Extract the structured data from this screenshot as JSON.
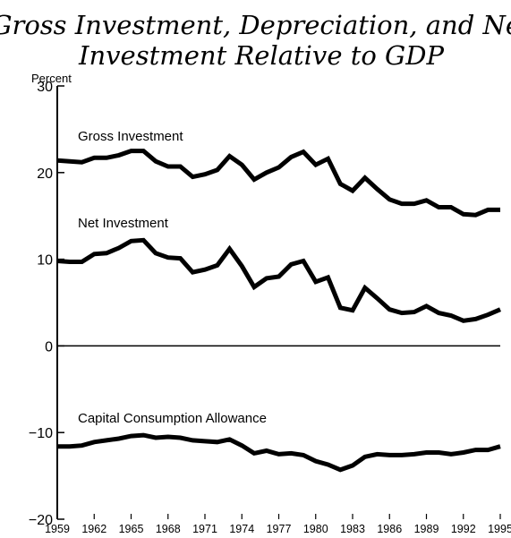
{
  "chart_data": {
    "type": "line",
    "title_lines": [
      "Gross Investment, Depreciation, and Net",
      "Investment Relative to GDP"
    ],
    "ylabel": "Percent",
    "ylim": [
      -20,
      30
    ],
    "yticks": [
      30,
      20,
      10,
      0,
      -10,
      -20
    ],
    "xlim": [
      1959,
      1995
    ],
    "xticks": [
      1959,
      1962,
      1965,
      1968,
      1971,
      1974,
      1977,
      1980,
      1983,
      1986,
      1989,
      1992,
      1995
    ],
    "grid": false,
    "series_labels_inline": true,
    "series": [
      {
        "name": "Gross Investment",
        "color": "#000000",
        "x": [
          1959,
          1960,
          1961,
          1962,
          1963,
          1964,
          1965,
          1966,
          1967,
          1968,
          1969,
          1970,
          1971,
          1972,
          1973,
          1974,
          1975,
          1976,
          1977,
          1978,
          1979,
          1980,
          1981,
          1982,
          1983,
          1984,
          1985,
          1986,
          1987,
          1988,
          1989,
          1990,
          1991,
          1992,
          1993,
          1994,
          1995
        ],
        "values": [
          21.4,
          21.3,
          21.2,
          21.7,
          21.7,
          22.0,
          22.5,
          22.5,
          21.3,
          20.7,
          20.7,
          19.5,
          19.8,
          20.3,
          21.9,
          20.9,
          19.2,
          20.0,
          20.6,
          21.8,
          22.4,
          20.9,
          21.6,
          18.7,
          17.9,
          19.4,
          18.1,
          16.9,
          16.4,
          16.4,
          16.8,
          16.0,
          16.0,
          15.2,
          15.1,
          15.7,
          15.7
        ]
      },
      {
        "name": "Net Investment",
        "color": "#000000",
        "x": [
          1959,
          1960,
          1961,
          1962,
          1963,
          1964,
          1965,
          1966,
          1967,
          1968,
          1969,
          1970,
          1971,
          1972,
          1973,
          1974,
          1975,
          1976,
          1977,
          1978,
          1979,
          1980,
          1981,
          1982,
          1983,
          1984,
          1985,
          1986,
          1987,
          1988,
          1989,
          1990,
          1991,
          1992,
          1993,
          1994,
          1995
        ],
        "values": [
          9.8,
          9.7,
          9.7,
          10.6,
          10.7,
          11.3,
          12.1,
          12.2,
          10.7,
          10.2,
          10.1,
          8.5,
          8.8,
          9.3,
          11.2,
          9.2,
          6.8,
          7.8,
          8.0,
          9.4,
          9.8,
          7.4,
          7.9,
          4.4,
          4.1,
          6.7,
          5.5,
          4.2,
          3.8,
          3.9,
          4.6,
          3.8,
          3.5,
          2.9,
          3.1,
          3.6,
          4.2
        ]
      },
      {
        "name": "Capital Consumption Allowance",
        "color": "#000000",
        "x": [
          1959,
          1960,
          1961,
          1962,
          1963,
          1964,
          1965,
          1966,
          1967,
          1968,
          1969,
          1970,
          1971,
          1972,
          1973,
          1974,
          1975,
          1976,
          1977,
          1978,
          1979,
          1980,
          1981,
          1982,
          1983,
          1984,
          1985,
          1986,
          1987,
          1988,
          1989,
          1990,
          1991,
          1992,
          1993,
          1994,
          1995
        ],
        "values": [
          -11.6,
          -11.6,
          -11.5,
          -11.1,
          -10.9,
          -10.7,
          -10.4,
          -10.3,
          -10.6,
          -10.5,
          -10.6,
          -10.9,
          -11.0,
          -11.1,
          -10.8,
          -11.5,
          -12.4,
          -12.1,
          -12.5,
          -12.4,
          -12.6,
          -13.3,
          -13.7,
          -14.3,
          -13.8,
          -12.8,
          -12.5,
          -12.6,
          -12.6,
          -12.5,
          -12.3,
          -12.3,
          -12.5,
          -12.3,
          -12.0,
          -12.0,
          -11.6
        ]
      }
    ]
  }
}
